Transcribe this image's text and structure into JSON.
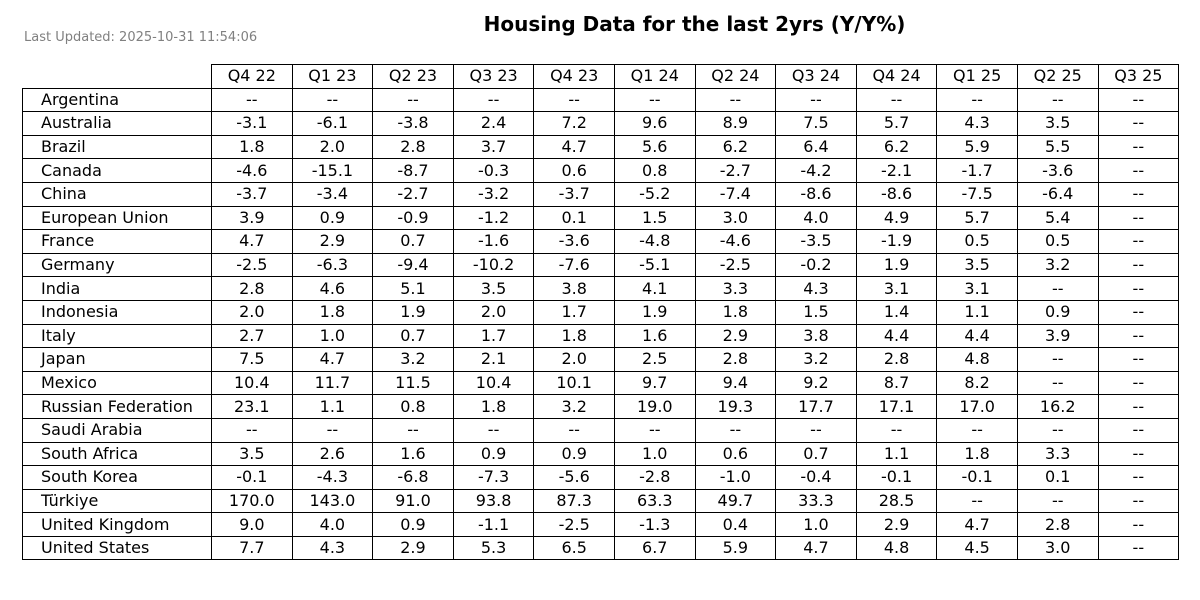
{
  "chart_data": {
    "type": "table",
    "title": "Housing Data for the last 2yrs (Y/Y%)",
    "subtitle": "Last Updated: 2025-10-31 11:54:06",
    "columns": [
      "Q4 22",
      "Q1 23",
      "Q2 23",
      "Q3 23",
      "Q4 23",
      "Q1 24",
      "Q2 24",
      "Q3 24",
      "Q4 24",
      "Q1 25",
      "Q2 25",
      "Q3 25"
    ],
    "rows": [
      {
        "label": "Argentina",
        "values": [
          "--",
          "--",
          "--",
          "--",
          "--",
          "--",
          "--",
          "--",
          "--",
          "--",
          "--",
          "--"
        ]
      },
      {
        "label": "Australia",
        "values": [
          "-3.1",
          "-6.1",
          "-3.8",
          "2.4",
          "7.2",
          "9.6",
          "8.9",
          "7.5",
          "5.7",
          "4.3",
          "3.5",
          "--"
        ]
      },
      {
        "label": "Brazil",
        "values": [
          "1.8",
          "2.0",
          "2.8",
          "3.7",
          "4.7",
          "5.6",
          "6.2",
          "6.4",
          "6.2",
          "5.9",
          "5.5",
          "--"
        ]
      },
      {
        "label": "Canada",
        "values": [
          "-4.6",
          "-15.1",
          "-8.7",
          "-0.3",
          "0.6",
          "0.8",
          "-2.7",
          "-4.2",
          "-2.1",
          "-1.7",
          "-3.6",
          "--"
        ]
      },
      {
        "label": "China",
        "values": [
          "-3.7",
          "-3.4",
          "-2.7",
          "-3.2",
          "-3.7",
          "-5.2",
          "-7.4",
          "-8.6",
          "-8.6",
          "-7.5",
          "-6.4",
          "--"
        ]
      },
      {
        "label": "European Union",
        "values": [
          "3.9",
          "0.9",
          "-0.9",
          "-1.2",
          "0.1",
          "1.5",
          "3.0",
          "4.0",
          "4.9",
          "5.7",
          "5.4",
          "--"
        ]
      },
      {
        "label": "France",
        "values": [
          "4.7",
          "2.9",
          "0.7",
          "-1.6",
          "-3.6",
          "-4.8",
          "-4.6",
          "-3.5",
          "-1.9",
          "0.5",
          "0.5",
          "--"
        ]
      },
      {
        "label": "Germany",
        "values": [
          "-2.5",
          "-6.3",
          "-9.4",
          "-10.2",
          "-7.6",
          "-5.1",
          "-2.5",
          "-0.2",
          "1.9",
          "3.5",
          "3.2",
          "--"
        ]
      },
      {
        "label": "India",
        "values": [
          "2.8",
          "4.6",
          "5.1",
          "3.5",
          "3.8",
          "4.1",
          "3.3",
          "4.3",
          "3.1",
          "3.1",
          "--",
          "--"
        ]
      },
      {
        "label": "Indonesia",
        "values": [
          "2.0",
          "1.8",
          "1.9",
          "2.0",
          "1.7",
          "1.9",
          "1.8",
          "1.5",
          "1.4",
          "1.1",
          "0.9",
          "--"
        ]
      },
      {
        "label": "Italy",
        "values": [
          "2.7",
          "1.0",
          "0.7",
          "1.7",
          "1.8",
          "1.6",
          "2.9",
          "3.8",
          "4.4",
          "4.4",
          "3.9",
          "--"
        ]
      },
      {
        "label": "Japan",
        "values": [
          "7.5",
          "4.7",
          "3.2",
          "2.1",
          "2.0",
          "2.5",
          "2.8",
          "3.2",
          "2.8",
          "4.8",
          "--",
          "--"
        ]
      },
      {
        "label": "Mexico",
        "values": [
          "10.4",
          "11.7",
          "11.5",
          "10.4",
          "10.1",
          "9.7",
          "9.4",
          "9.2",
          "8.7",
          "8.2",
          "--",
          "--"
        ]
      },
      {
        "label": "Russian Federation",
        "values": [
          "23.1",
          "1.1",
          "0.8",
          "1.8",
          "3.2",
          "19.0",
          "19.3",
          "17.7",
          "17.1",
          "17.0",
          "16.2",
          "--"
        ]
      },
      {
        "label": "Saudi Arabia",
        "values": [
          "--",
          "--",
          "--",
          "--",
          "--",
          "--",
          "--",
          "--",
          "--",
          "--",
          "--",
          "--"
        ]
      },
      {
        "label": "South Africa",
        "values": [
          "3.5",
          "2.6",
          "1.6",
          "0.9",
          "0.9",
          "1.0",
          "0.6",
          "0.7",
          "1.1",
          "1.8",
          "3.3",
          "--"
        ]
      },
      {
        "label": "South Korea",
        "values": [
          "-0.1",
          "-4.3",
          "-6.8",
          "-7.3",
          "-5.6",
          "-2.8",
          "-1.0",
          "-0.4",
          "-0.1",
          "-0.1",
          "0.1",
          "--"
        ]
      },
      {
        "label": "Türkiye",
        "values": [
          "170.0",
          "143.0",
          "91.0",
          "93.8",
          "87.3",
          "63.3",
          "49.7",
          "33.3",
          "28.5",
          "--",
          "--",
          "--"
        ]
      },
      {
        "label": "United Kingdom",
        "values": [
          "9.0",
          "4.0",
          "0.9",
          "-1.1",
          "-2.5",
          "-1.3",
          "0.4",
          "1.0",
          "2.9",
          "4.7",
          "2.8",
          "--"
        ]
      },
      {
        "label": "United States",
        "values": [
          "7.7",
          "4.3",
          "2.9",
          "5.3",
          "6.5",
          "6.7",
          "5.9",
          "4.7",
          "4.8",
          "4.5",
          "3.0",
          "--"
        ]
      }
    ]
  }
}
